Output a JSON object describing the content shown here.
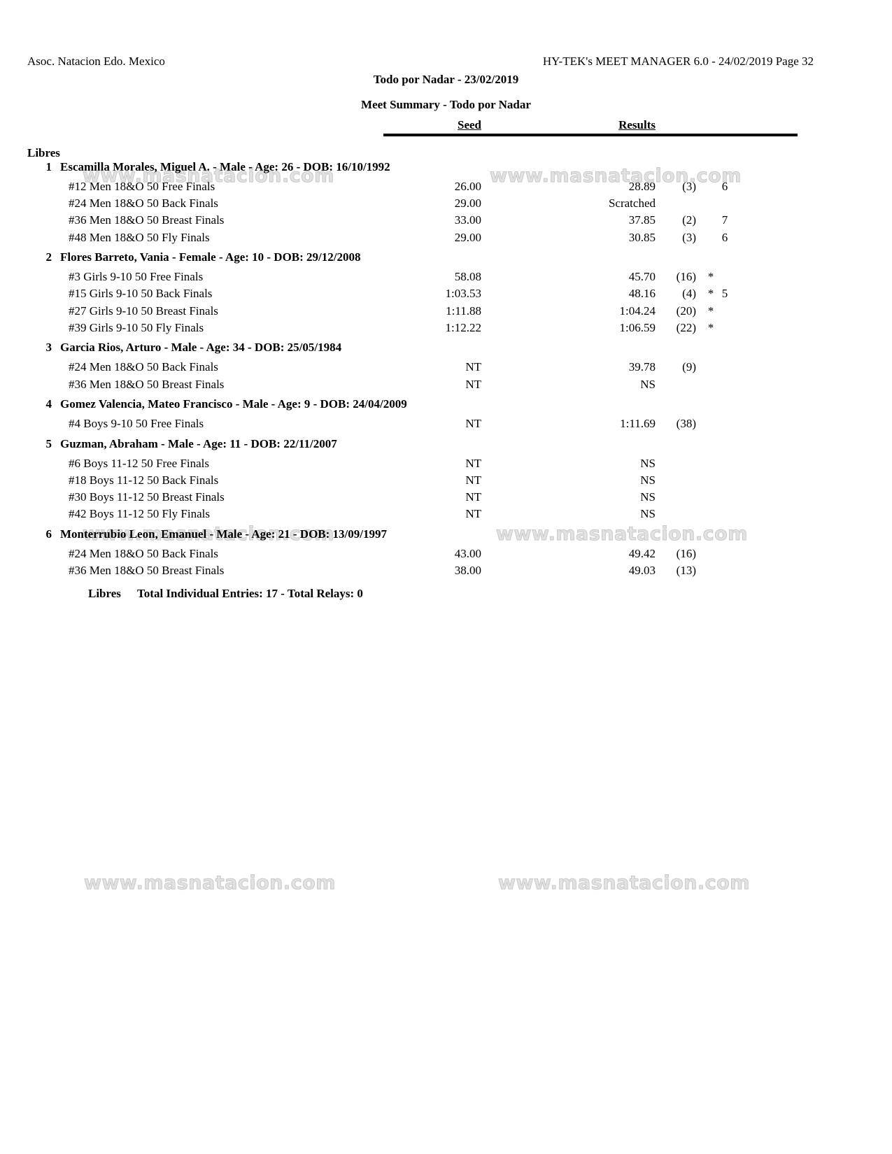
{
  "page": {
    "club": "Asoc. Natacion Edo. Mexico",
    "app_header": "HY-TEK's MEET MANAGER 6.0 - 24/02/2019  Page 32",
    "title": "Todo por Nadar - 23/02/2019",
    "subtitle": "Meet Summary - Todo por Nadar",
    "columns": {
      "seed": "Seed",
      "results": "Results"
    },
    "section": "Libres",
    "watermark": "www.masnatacion.com",
    "footer": {
      "section": "Libres",
      "totals": "Total Individual Entries: 17  -  Total Relays: 0"
    }
  },
  "entries": [
    {
      "num": "1",
      "swimmer": "Escamilla Morales, Miguel A. - Male - Age: 26 - DOB: 16/10/1992",
      "events": [
        {
          "event": "#12 Men 18&O 50 Free Finals",
          "seed": "26.00",
          "result": "28.89",
          "place": "(3)",
          "star": "",
          "points": "6"
        },
        {
          "event": "#24 Men 18&O 50 Back Finals",
          "seed": "29.00",
          "result": "Scratched",
          "place": "",
          "star": "",
          "points": ""
        },
        {
          "event": "#36 Men 18&O 50 Breast Finals",
          "seed": "33.00",
          "result": "37.85",
          "place": "(2)",
          "star": "",
          "points": "7"
        },
        {
          "event": "#48 Men 18&O 50 Fly Finals",
          "seed": "29.00",
          "result": "30.85",
          "place": "(3)",
          "star": "",
          "points": "6"
        }
      ]
    },
    {
      "num": "2",
      "swimmer": "Flores Barreto, Vania - Female - Age: 10 - DOB: 29/12/2008",
      "events": [
        {
          "event": "#3 Girls 9-10 50 Free Finals",
          "seed": "58.08",
          "result": "45.70",
          "place": "(16)",
          "star": "*",
          "points": ""
        },
        {
          "event": "#15 Girls 9-10 50 Back Finals",
          "seed": "1:03.53",
          "result": "48.16",
          "place": "(4)",
          "star": "*",
          "points": "5"
        },
        {
          "event": "#27 Girls 9-10 50 Breast Finals",
          "seed": "1:11.88",
          "result": "1:04.24",
          "place": "(20)",
          "star": "*",
          "points": ""
        },
        {
          "event": "#39 Girls 9-10 50 Fly Finals",
          "seed": "1:12.22",
          "result": "1:06.59",
          "place": "(22)",
          "star": "*",
          "points": ""
        }
      ]
    },
    {
      "num": "3",
      "swimmer": "Garcia Rios, Arturo - Male - Age: 34 - DOB: 25/05/1984",
      "events": [
        {
          "event": "#24 Men 18&O 50 Back Finals",
          "seed": "NT",
          "result": "39.78",
          "place": "(9)",
          "star": "",
          "points": ""
        },
        {
          "event": "#36 Men 18&O 50 Breast Finals",
          "seed": "NT",
          "result": "NS",
          "place": "",
          "star": "",
          "points": ""
        }
      ]
    },
    {
      "num": "4",
      "swimmer": "Gomez Valencia, Mateo Francisco - Male - Age: 9 - DOB: 24/04/2009",
      "events": [
        {
          "event": "#4 Boys 9-10 50 Free Finals",
          "seed": "NT",
          "result": "1:11.69",
          "place": "(38)",
          "star": "",
          "points": ""
        }
      ]
    },
    {
      "num": "5",
      "swimmer": "Guzman, Abraham - Male - Age: 11 - DOB: 22/11/2007",
      "events": [
        {
          "event": "#6 Boys 11-12 50 Free Finals",
          "seed": "NT",
          "result": "NS",
          "place": "",
          "star": "",
          "points": ""
        },
        {
          "event": "#18 Boys 11-12 50 Back Finals",
          "seed": "NT",
          "result": "NS",
          "place": "",
          "star": "",
          "points": ""
        },
        {
          "event": "#30 Boys 11-12 50 Breast Finals",
          "seed": "NT",
          "result": "NS",
          "place": "",
          "star": "",
          "points": ""
        },
        {
          "event": "#42 Boys 11-12 50 Fly Finals",
          "seed": "NT",
          "result": "NS",
          "place": "",
          "star": "",
          "points": ""
        }
      ]
    },
    {
      "num": "6",
      "swimmer": "Monterrubio Leon, Emanuel - Male - Age: 21 - DOB: 13/09/1997",
      "events": [
        {
          "event": "#24 Men 18&O 50 Back Finals",
          "seed": "43.00",
          "result": "49.42",
          "place": "(16)",
          "star": "",
          "points": ""
        },
        {
          "event": "#36 Men 18&O 50 Breast Finals",
          "seed": "38.00",
          "result": "49.03",
          "place": "(13)",
          "star": "",
          "points": ""
        }
      ]
    }
  ]
}
